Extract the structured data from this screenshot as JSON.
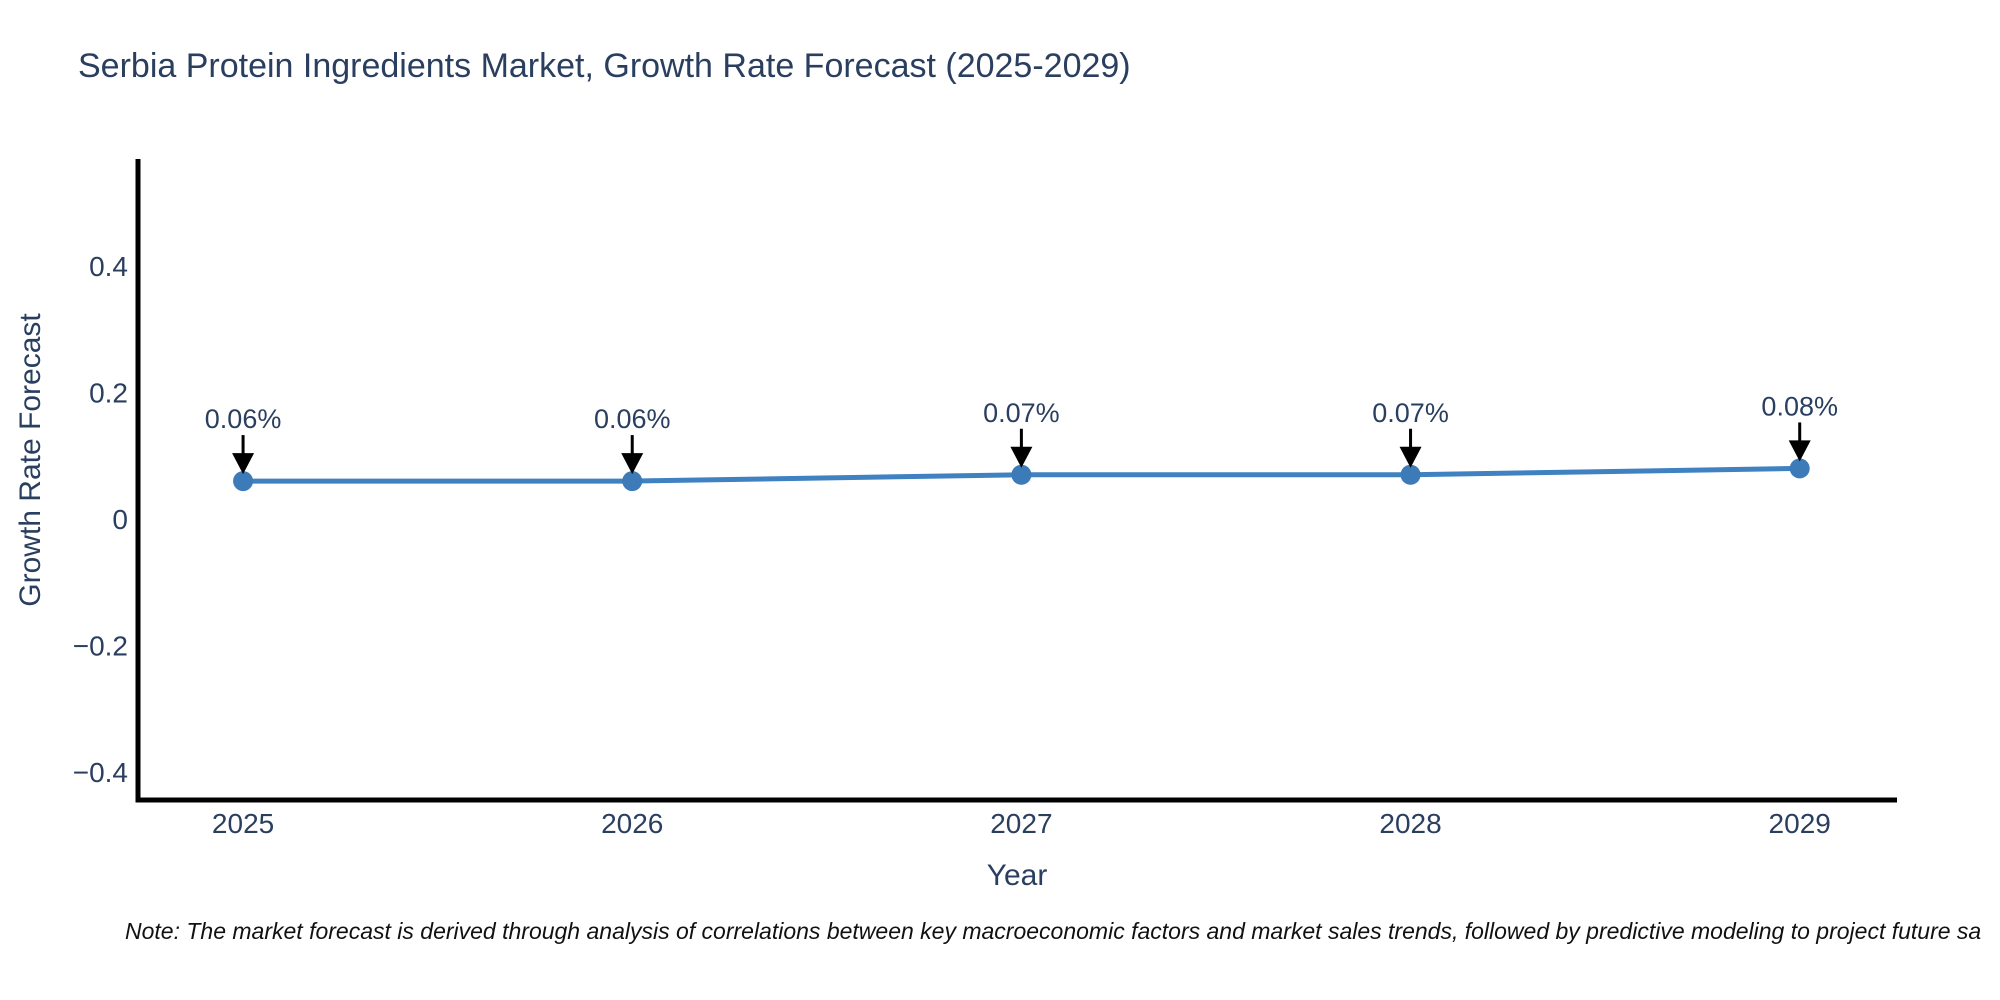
{
  "title": "Serbia Protein Ingredients Market, Growth Rate Forecast (2025-2029)",
  "footnote": "Note: The market forecast is derived through analysis of correlations between key macroeconomic factors and market sales trends, followed by predictive modeling to project future sa",
  "chart_data": {
    "type": "line",
    "title": "Serbia Protein Ingredients Market, Growth Rate Forecast (2025-2029)",
    "xlabel": "Year",
    "ylabel": "Growth Rate Forecast",
    "x": [
      2025,
      2026,
      2027,
      2028,
      2029
    ],
    "values": [
      0.06,
      0.06,
      0.07,
      0.07,
      0.08
    ],
    "point_labels": [
      "0.06%",
      "0.06%",
      "0.07%",
      "0.07%",
      "0.08%"
    ],
    "series_name": "Growth Rate Forecast",
    "xlim": [
      2024.73,
      2029.25
    ],
    "ylim": [
      -0.444,
      0.569
    ],
    "yticks": {
      "values": [
        0.4,
        0.2,
        0,
        -0.2,
        -0.4
      ],
      "labels": [
        "0.4",
        "0.2",
        "0",
        "−0.2",
        "−0.4"
      ]
    },
    "xticks": {
      "values": [
        2025,
        2026,
        2027,
        2028,
        2029
      ],
      "labels": [
        "2025",
        "2026",
        "2027",
        "2028",
        "2029"
      ]
    },
    "grid": false,
    "legend": "none",
    "colors": {
      "line": "#3f81c1",
      "marker": "#3d7ab8",
      "axis": "#000000",
      "labels": "#2a3f5f",
      "arrow": "#000000",
      "note_text": "#111111",
      "background": "#ffffff"
    }
  }
}
